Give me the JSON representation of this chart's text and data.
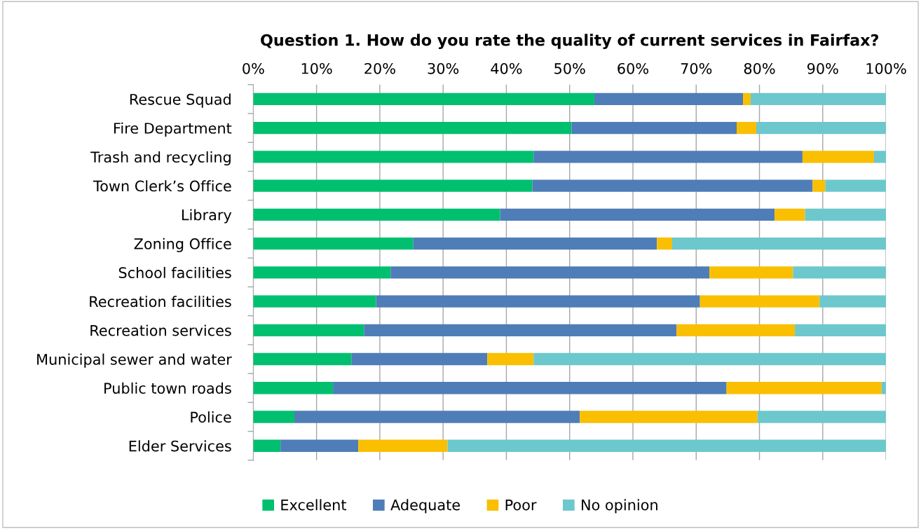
{
  "chart_data": {
    "type": "bar",
    "orientation": "horizontal",
    "stacked": true,
    "title": "Question 1. How do you rate the quality of current services in Fairfax?",
    "categories": [
      "Rescue Squad",
      "Fire Department",
      "Trash and recycling",
      "Town Clerk’s Office",
      "Library",
      "Zoning Office",
      "School facilities",
      "Recreation facilities",
      "Recreation services",
      "Municipal sewer and water",
      "Public town roads",
      "Police",
      "Elder Services"
    ],
    "series": [
      {
        "name": "Excellent",
        "color": "#00c06f",
        "values": [
          53.9,
          50.3,
          44.3,
          44.1,
          39.0,
          25.3,
          21.7,
          19.4,
          17.5,
          15.5,
          12.6,
          6.5,
          4.3
        ]
      },
      {
        "name": "Adequate",
        "color": "#4f7db7",
        "values": [
          23.5,
          26.1,
          42.5,
          44.3,
          43.4,
          38.5,
          50.4,
          51.2,
          49.4,
          21.5,
          62.2,
          45.1,
          12.3
        ]
      },
      {
        "name": "Poor",
        "color": "#f9bf00",
        "values": [
          1.2,
          3.1,
          11.3,
          2.0,
          4.8,
          2.4,
          13.2,
          18.9,
          18.7,
          7.3,
          24.5,
          28.1,
          14.1
        ]
      },
      {
        "name": "No opinion",
        "color": "#6cc8cc",
        "values": [
          21.4,
          20.5,
          1.9,
          9.6,
          12.8,
          33.8,
          14.7,
          10.5,
          14.4,
          55.7,
          0.7,
          20.3,
          69.3
        ]
      }
    ],
    "xlim": [
      0,
      100
    ],
    "xticks": [
      {
        "value": 0,
        "label": "0%"
      },
      {
        "value": 10,
        "label": "10%"
      },
      {
        "value": 20,
        "label": "20%"
      },
      {
        "value": 30,
        "label": "30%"
      },
      {
        "value": 40,
        "label": "40%"
      },
      {
        "value": 50,
        "label": "50%"
      },
      {
        "value": 60,
        "label": "60%"
      },
      {
        "value": 70,
        "label": "70%"
      },
      {
        "value": 80,
        "label": "80%"
      },
      {
        "value": 90,
        "label": "90%"
      },
      {
        "value": 100,
        "label": "100%"
      }
    ],
    "grid": "x",
    "legend": "bottom"
  }
}
